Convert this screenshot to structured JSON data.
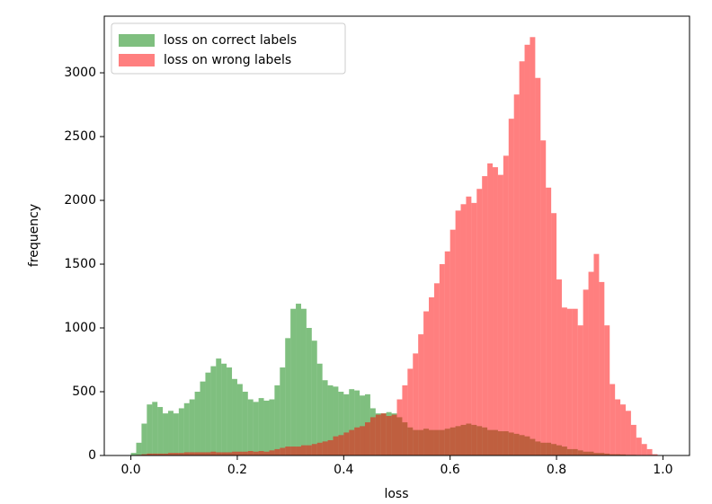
{
  "chart_data": {
    "type": "histogram",
    "xlabel": "loss",
    "ylabel": "frequency",
    "bins": [
      0,
      0.01,
      0.02,
      0.03,
      0.04,
      0.05,
      0.06,
      0.07,
      0.08,
      0.09,
      0.1,
      0.11,
      0.12,
      0.13,
      0.14,
      0.15,
      0.16,
      0.17,
      0.18,
      0.19,
      0.2,
      0.21,
      0.22,
      0.23,
      0.24,
      0.25,
      0.26,
      0.27,
      0.28,
      0.29,
      0.3,
      0.31,
      0.32,
      0.33,
      0.34,
      0.35,
      0.36,
      0.37,
      0.38,
      0.39,
      0.4,
      0.41,
      0.42,
      0.43,
      0.44,
      0.45,
      0.46,
      0.47,
      0.48,
      0.49,
      0.5,
      0.51,
      0.52,
      0.53,
      0.54,
      0.55,
      0.56,
      0.57,
      0.58,
      0.59,
      0.6,
      0.61,
      0.62,
      0.63,
      0.64,
      0.65,
      0.66,
      0.67,
      0.68,
      0.69,
      0.7,
      0.71,
      0.72,
      0.73,
      0.74,
      0.75,
      0.76,
      0.77,
      0.78,
      0.79,
      0.8,
      0.81,
      0.82,
      0.83,
      0.84,
      0.85,
      0.86,
      0.87,
      0.88,
      0.89,
      0.9,
      0.91,
      0.92,
      0.93,
      0.94,
      0.95,
      0.96,
      0.97,
      0.98,
      0.99,
      1
    ],
    "series": [
      {
        "name": "loss on correct labels",
        "color": "#008000",
        "values": [
          20,
          100,
          250,
          400,
          420,
          380,
          330,
          350,
          330,
          370,
          410,
          440,
          500,
          580,
          650,
          700,
          760,
          720,
          690,
          600,
          560,
          500,
          440,
          420,
          450,
          430,
          440,
          550,
          690,
          920,
          1150,
          1190,
          1150,
          1000,
          900,
          720,
          590,
          550,
          540,
          500,
          480,
          520,
          510,
          470,
          480,
          370,
          330,
          330,
          340,
          330,
          300,
          260,
          220,
          200,
          200,
          210,
          200,
          200,
          200,
          210,
          220,
          230,
          240,
          250,
          240,
          230,
          220,
          200,
          200,
          190,
          190,
          180,
          170,
          160,
          150,
          130,
          110,
          100,
          100,
          90,
          80,
          70,
          50,
          50,
          40,
          30,
          30,
          20,
          20,
          15,
          10,
          10,
          8,
          5,
          5,
          3,
          2,
          1,
          1,
          0
        ]
      },
      {
        "name": "loss on wrong labels",
        "color": "#ff0000",
        "values": [
          0,
          5,
          10,
          15,
          15,
          15,
          15,
          20,
          20,
          20,
          25,
          25,
          25,
          25,
          25,
          30,
          25,
          25,
          25,
          30,
          30,
          30,
          35,
          30,
          35,
          30,
          40,
          50,
          60,
          70,
          70,
          70,
          80,
          80,
          90,
          100,
          110,
          120,
          150,
          160,
          180,
          200,
          220,
          230,
          260,
          300,
          320,
          330,
          310,
          320,
          440,
          550,
          680,
          800,
          950,
          1130,
          1240,
          1350,
          1500,
          1600,
          1770,
          1920,
          1970,
          2030,
          1980,
          2090,
          2190,
          2290,
          2260,
          2200,
          2350,
          2640,
          2830,
          3090,
          3220,
          3280,
          2960,
          2470,
          2100,
          1900,
          1380,
          1160,
          1150,
          1150,
          1020,
          1300,
          1440,
          1580,
          1360,
          1020,
          560,
          440,
          400,
          350,
          240,
          140,
          90,
          50,
          10,
          0
        ]
      }
    ],
    "alpha": 0.5,
    "xlim": [
      -0.05,
      1.05
    ],
    "xticks": [
      {
        "value": 0,
        "label": "0.0"
      },
      0.2,
      0.4,
      0.6,
      0.8,
      {
        "value": 1,
        "label": "1.0"
      }
    ],
    "ylim": [
      0,
      3444
    ],
    "yticks": [
      0,
      500,
      1000,
      1500,
      2000,
      2500,
      3000
    ],
    "legend": "upper left"
  }
}
